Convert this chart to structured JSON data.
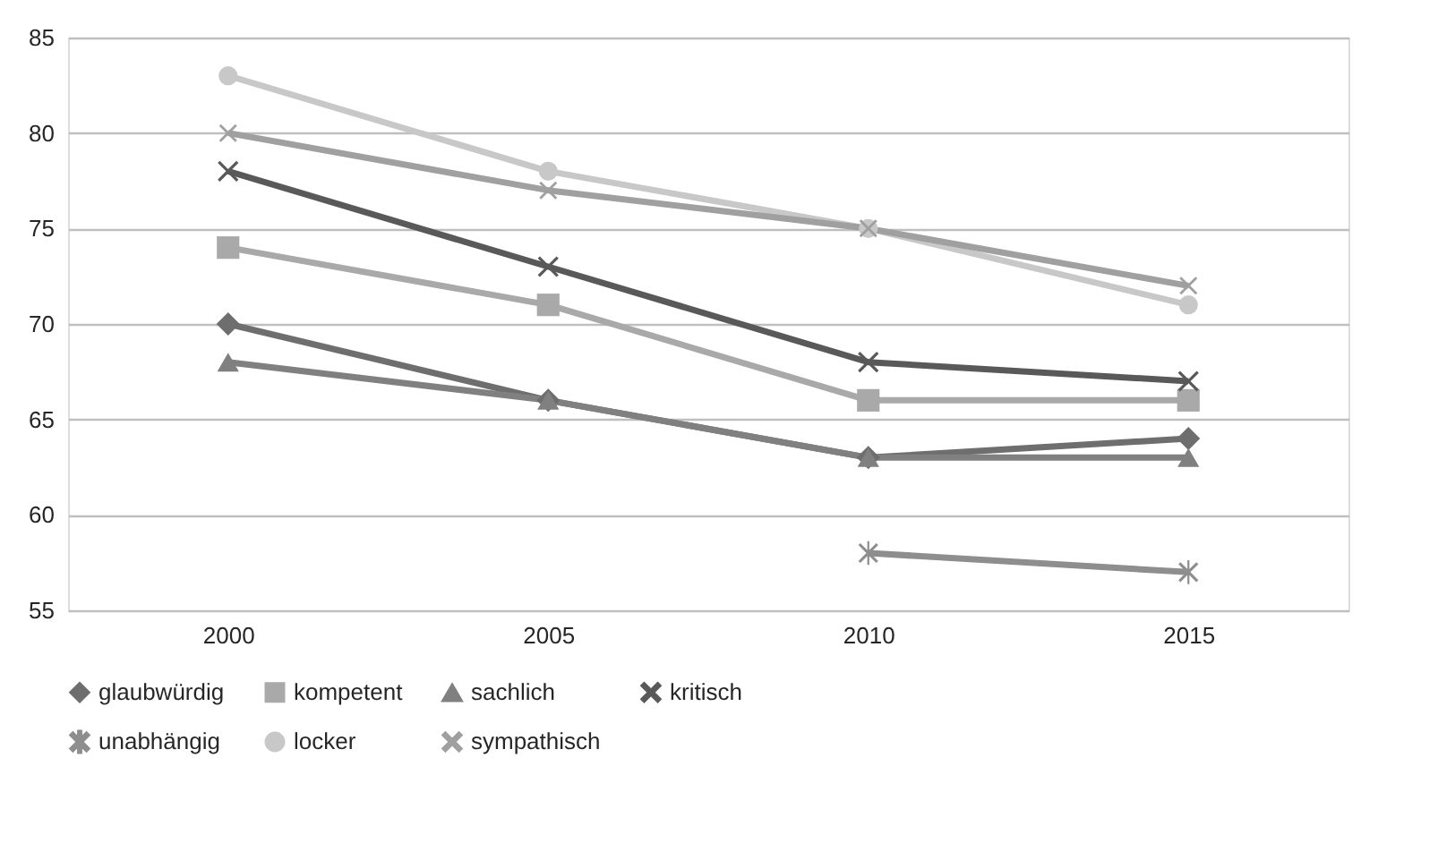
{
  "chart_data": {
    "type": "line",
    "categories": [
      "2000",
      "2005",
      "2010",
      "2015"
    ],
    "ylim": [
      55,
      85
    ],
    "yticks": [
      55,
      60,
      65,
      70,
      75,
      80,
      85
    ],
    "grid": "y",
    "legend": "bottom",
    "line_style": "solid",
    "series": [
      {
        "name": "glaubwürdig",
        "color": "#6e6e6e",
        "marker": "diamond",
        "values": [
          70,
          66,
          63,
          64
        ]
      },
      {
        "name": "kompetent",
        "color": "#a9a9a9",
        "marker": "square",
        "values": [
          74,
          71,
          66,
          66
        ]
      },
      {
        "name": "sachlich",
        "color": "#808080",
        "marker": "triangle",
        "values": [
          68,
          66,
          63,
          63
        ]
      },
      {
        "name": "kritisch",
        "color": "#595959",
        "marker": "cross",
        "values": [
          78,
          73,
          68,
          67
        ]
      },
      {
        "name": "unabhängig",
        "color": "#8e8e8e",
        "marker": "star",
        "values": [
          null,
          null,
          58,
          57
        ]
      },
      {
        "name": "locker",
        "color": "#c8c8c8",
        "marker": "circle",
        "values": [
          83,
          78,
          75,
          71
        ]
      },
      {
        "name": "sympathisch",
        "color": "#a0a0a0",
        "marker": "cross",
        "values": [
          80,
          77,
          75,
          72
        ]
      }
    ]
  }
}
